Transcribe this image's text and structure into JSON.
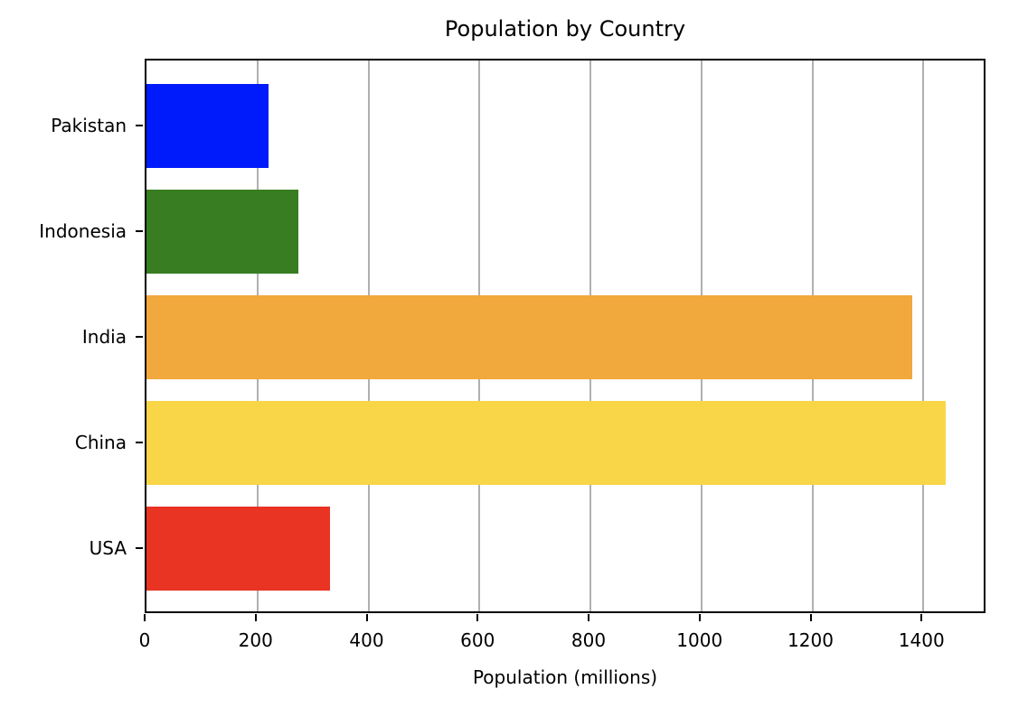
{
  "chart_data": {
    "type": "bar",
    "orientation": "horizontal",
    "title": "Population by Country",
    "xlabel": "Population (millions)",
    "ylabel": "",
    "categories": [
      "USA",
      "China",
      "India",
      "Indonesia",
      "Pakistan"
    ],
    "values": [
      331,
      1440,
      1380,
      273,
      220
    ],
    "colors": [
      "#e93323",
      "#f9d648",
      "#f1a83c",
      "#387d21",
      "#001bfb"
    ],
    "xlim": [
      0,
      1512
    ],
    "xticks": [
      0,
      200,
      400,
      600,
      800,
      1000,
      1200,
      1400
    ],
    "grid": {
      "x": true,
      "y": false
    },
    "legend": null
  }
}
